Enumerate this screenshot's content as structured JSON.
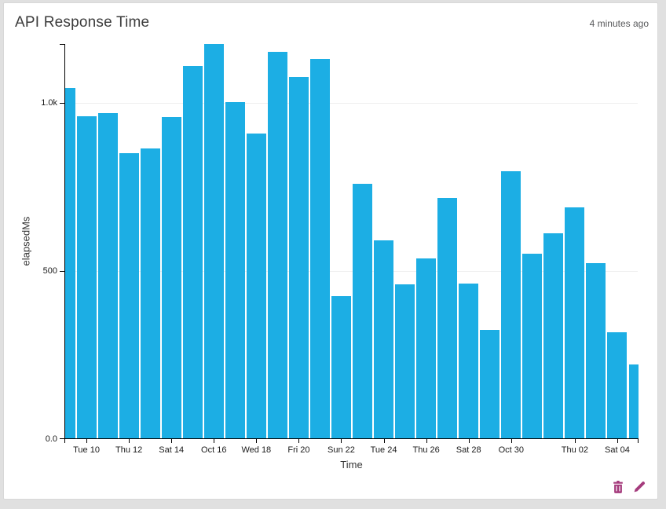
{
  "panel": {
    "title": "API Response Time",
    "updated": "4 minutes ago"
  },
  "actions": {
    "icon_color": "#a53c7d",
    "delete_icon": "trash-icon",
    "edit_icon": "pencil-icon"
  },
  "chart_data": {
    "type": "bar",
    "title": "API Response Time",
    "xlabel": "Time",
    "ylabel": "elapsedMs",
    "ylim": [
      0,
      1175
    ],
    "grid": true,
    "legend": false,
    "bar_color": "#1caee4",
    "axis_color": "#000000",
    "grid_color": "#efefef",
    "y_ticks": [
      {
        "label": "0.0",
        "value": 0
      },
      {
        "label": "500",
        "value": 500
      },
      {
        "label": "1.0k",
        "value": 1000
      }
    ],
    "x_ticks": [
      {
        "label": "Tue 10",
        "bar_index": 1
      },
      {
        "label": "Thu 12",
        "bar_index": 3
      },
      {
        "label": "Sat 14",
        "bar_index": 5
      },
      {
        "label": "Oct 16",
        "bar_index": 7
      },
      {
        "label": "Wed 18",
        "bar_index": 9
      },
      {
        "label": "Fri 20",
        "bar_index": 11
      },
      {
        "label": "Sun 22",
        "bar_index": 13
      },
      {
        "label": "Tue 24",
        "bar_index": 15
      },
      {
        "label": "Thu 26",
        "bar_index": 17
      },
      {
        "label": "Sat 28",
        "bar_index": 19
      },
      {
        "label": "Oct 30",
        "bar_index": 21
      },
      {
        "label": "Thu 02",
        "bar_index": 24
      },
      {
        "label": "Sat 04",
        "bar_index": 26
      }
    ],
    "values": [
      1042,
      958,
      968,
      847,
      863,
      956,
      1107,
      1172,
      1000,
      907,
      1149,
      1075,
      1128,
      423,
      756,
      588,
      458,
      535,
      714,
      461,
      323,
      795,
      549,
      609,
      686,
      521,
      316,
      219
    ]
  }
}
